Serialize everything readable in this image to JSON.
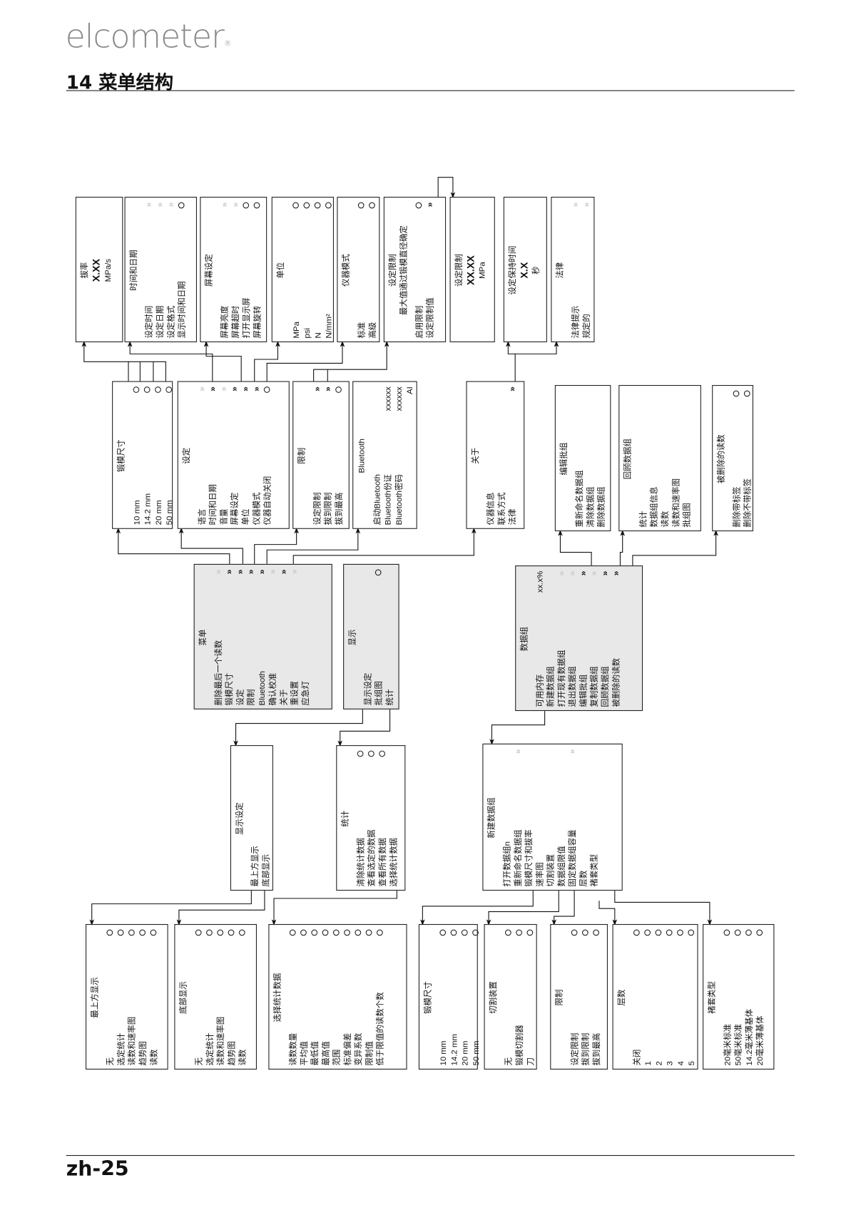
{
  "header": {
    "logo": "elcometer",
    "logo_mark": "®",
    "title": "14 菜单结构"
  },
  "footer": {
    "page": "zh-25"
  },
  "icons": {
    "arrow": "double-chevron-right-icon",
    "arrow-disabled": "double-chevron-right-disabled-icon",
    "radio": "radio-circle-icon"
  },
  "colors": {
    "submenu_bg": "#e8e8e8",
    "disabled_arrow": "#c8c8c8"
  },
  "boxes": [
    {
      "id": "pull-rate",
      "lines": [
        {
          "t": "拔率"
        },
        {
          "t": "X.XX",
          "big": true
        },
        {
          "t": "MPa/s"
        }
      ]
    },
    {
      "id": "time-date",
      "title": "时间和日期",
      "items": [
        {
          "label": "设定时间",
          "ind": "arrow-disabled"
        },
        {
          "label": "设定日期",
          "ind": "arrow-disabled"
        },
        {
          "label": "设定格式",
          "ind": "arrow-disabled"
        },
        {
          "label": "显示时间和日期",
          "ind": "radio"
        }
      ]
    },
    {
      "id": "screen-settings",
      "title": "屏幕设定",
      "items": [
        {
          "label": "屏幕亮度",
          "ind": "arrow-disabled"
        },
        {
          "label": "屏幕超时",
          "ind": "arrow-disabled"
        },
        {
          "label": "打开显示屏",
          "ind": "radio"
        },
        {
          "label": "屏幕旋转",
          "ind": "radio"
        }
      ]
    },
    {
      "id": "units",
      "title": "单位",
      "items": [
        {
          "label": "MPa",
          "ind": "radio"
        },
        {
          "label": "psi",
          "ind": "radio"
        },
        {
          "label": "N",
          "ind": "radio"
        },
        {
          "label": "N/mm²",
          "ind": "radio"
        }
      ]
    },
    {
      "id": "instrument-mode",
      "title": "仪器模式",
      "items": [
        {
          "label": "标准",
          "ind": "radio"
        },
        {
          "label": "高级",
          "ind": "radio"
        }
      ]
    },
    {
      "id": "set-limit",
      "title": "设定限制",
      "lines": [
        {
          "t": "最大值通过锻模直径确定"
        }
      ],
      "items": [
        {
          "label": "启用限制",
          "ind": "radio"
        },
        {
          "label": "设定限制值",
          "ind": "arrow"
        }
      ]
    },
    {
      "id": "limit-value",
      "lines": [
        {
          "t": "设定限制"
        },
        {
          "t": "XX.XX",
          "big": true
        },
        {
          "t": "MPa"
        }
      ]
    },
    {
      "id": "hold-time",
      "lines": [
        {
          "t": "设定保持时间"
        },
        {
          "t": "X.X",
          "big": true
        },
        {
          "t": "秒"
        }
      ]
    },
    {
      "id": "legal",
      "title": "法律",
      "items": [
        {
          "label": "法律提示",
          "ind": "arrow-disabled"
        },
        {
          "label": "规定的",
          "ind": "arrow-disabled"
        }
      ]
    },
    {
      "id": "dolly-size",
      "title": "锻模尺寸",
      "items": [
        {
          "label": "10 mm",
          "ind": "radio"
        },
        {
          "label": "14.2 mm",
          "ind": "radio"
        },
        {
          "label": "20 mm",
          "ind": "radio"
        },
        {
          "label": "50 mm",
          "ind": "radio"
        }
      ]
    },
    {
      "id": "setup",
      "title": "设定",
      "items": [
        {
          "label": "语言",
          "ind": "arrow-disabled"
        },
        {
          "label": "时间和日期",
          "ind": "arrow"
        },
        {
          "label": "音量",
          "ind": "arrow-disabled"
        },
        {
          "label": "屏幕设定",
          "ind": "arrow"
        },
        {
          "label": "单位",
          "ind": "arrow"
        },
        {
          "label": "仪器模式",
          "ind": "arrow"
        },
        {
          "label": "仪器自动关闭",
          "ind": "radio"
        }
      ]
    },
    {
      "id": "limits",
      "title": "限制",
      "items": [
        {
          "label": "设定限制",
          "ind": "arrow"
        },
        {
          "label": "拔到限制",
          "ind": "arrow"
        },
        {
          "label": "拔到最高",
          "ind": "radio"
        }
      ]
    },
    {
      "id": "bluetooth",
      "title": "Bluetooth",
      "items": [
        {
          "label": "启动Bluetooth"
        },
        {
          "label": "Bluetooth份证",
          "value": "xxxxxx"
        },
        {
          "label": "Bluetooth密码",
          "value": "xxxxxx"
        },
        {
          "label": "",
          "value": "AI"
        }
      ]
    },
    {
      "id": "about",
      "title": "关于",
      "items": [
        {
          "label": "仪器信息"
        },
        {
          "label": "联系方式"
        },
        {
          "label": "法律",
          "ind": "arrow"
        }
      ]
    },
    {
      "id": "edit-batch",
      "title": "编辑批组",
      "items": [
        {
          "label": "重新命名数据组"
        },
        {
          "label": "清除数据组"
        },
        {
          "label": "删除数据组"
        }
      ]
    },
    {
      "id": "review-batch",
      "title": "回顾数据组",
      "items": [
        {
          "label": "统计"
        },
        {
          "label": "数据组信息"
        },
        {
          "label": "读数"
        },
        {
          "label": "读数和速率图"
        },
        {
          "label": "批组图"
        }
      ]
    },
    {
      "id": "deleted-readings",
      "title": "被删除的读数",
      "items": [
        {
          "label": "删除带标签",
          "ind": "radio"
        },
        {
          "label": "删除不带标签",
          "ind": "radio"
        }
      ]
    },
    {
      "id": "menu",
      "gray": true,
      "title": "菜单",
      "items": [
        {
          "label": "删除最后一个读数",
          "ind": "arrow-disabled"
        },
        {
          "label": "锻模尺寸",
          "ind": "arrow"
        },
        {
          "label": "设定",
          "ind": "arrow"
        },
        {
          "label": "限制",
          "ind": "arrow"
        },
        {
          "label": "Bluetooth",
          "ind": "arrow"
        },
        {
          "label": "确认校准",
          "ind": "arrow-disabled"
        },
        {
          "label": "关于",
          "ind": "arrow"
        },
        {
          "label": "重设置",
          "ind": "arrow-disabled"
        },
        {
          "label": "应急灯"
        }
      ]
    },
    {
      "id": "display",
      "gray": true,
      "title": "显示",
      "items": [
        {
          "label": "显示设定"
        },
        {
          "label": "批组图",
          "ind": "radio"
        },
        {
          "label": "统计"
        }
      ]
    },
    {
      "id": "batch",
      "gray": true,
      "title": "数据组",
      "items": [
        {
          "label": "可用内存",
          "value": "xx.x%"
        },
        {
          "label": "新建数据组"
        },
        {
          "label": "打开现有数据组",
          "ind": "arrow-disabled"
        },
        {
          "label": "退出数据组",
          "ind": "arrow-disabled"
        },
        {
          "label": "编辑批组",
          "ind": "arrow"
        },
        {
          "label": "复制数据组",
          "ind": "arrow-disabled"
        },
        {
          "label": "回顾数据组",
          "ind": "arrow"
        },
        {
          "label": "被删除的读数",
          "ind": "arrow"
        }
      ]
    },
    {
      "id": "display-settings",
      "title": "显示设定",
      "items": [
        {
          "label": "最上方显示"
        },
        {
          "label": "底部显示"
        }
      ]
    },
    {
      "id": "statistics",
      "title": "统计",
      "items": [
        {
          "label": "清除统计数据",
          "ind": "radio"
        },
        {
          "label": "查看选定的数据",
          "ind": "radio"
        },
        {
          "label": "查看所有数据",
          "ind": "radio"
        },
        {
          "label": "选择统计数据"
        }
      ]
    },
    {
      "id": "new-batch",
      "title": "新建数据组",
      "items": [
        {
          "label": "打开数据组n"
        },
        {
          "label": "重新命名数据组",
          "ind": "arrow-disabled"
        },
        {
          "label": "锻模尺寸和拔率"
        },
        {
          "label": "速率图"
        },
        {
          "label": "切割装置"
        },
        {
          "label": "数据组限值"
        },
        {
          "label": "固定数据组容量",
          "ind": "arrow-disabled"
        },
        {
          "label": "层数"
        },
        {
          "label": "褚套类型"
        }
      ]
    },
    {
      "id": "top-display",
      "title": "最上方显示",
      "items": [
        {
          "label": "无",
          "ind": "radio"
        },
        {
          "label": "选定统计",
          "ind": "radio"
        },
        {
          "label": "读数和速率图",
          "ind": "radio"
        },
        {
          "label": "趋势图",
          "ind": "radio"
        },
        {
          "label": "读数",
          "ind": "radio"
        }
      ]
    },
    {
      "id": "bottom-display",
      "title": "底部显示",
      "items": [
        {
          "label": "无",
          "ind": "radio"
        },
        {
          "label": "选定统计",
          "ind": "radio"
        },
        {
          "label": "读数和速率图",
          "ind": "radio"
        },
        {
          "label": "趋势图",
          "ind": "radio"
        },
        {
          "label": "读数",
          "ind": "radio"
        }
      ]
    },
    {
      "id": "select-stats",
      "title": "选择统计数据",
      "items": [
        {
          "label": "读数数量",
          "ind": "radio"
        },
        {
          "label": "平均值",
          "ind": "radio"
        },
        {
          "label": "最低值",
          "ind": "radio"
        },
        {
          "label": "最高值",
          "ind": "radio"
        },
        {
          "label": "范围",
          "ind": "radio"
        },
        {
          "label": "标准偏差",
          "ind": "radio"
        },
        {
          "label": "变异系数",
          "ind": "radio"
        },
        {
          "label": "限制值",
          "ind": "radio"
        },
        {
          "label": "低于限值的读数个数",
          "ind": "radio"
        }
      ]
    },
    {
      "id": "batch-dolly-size",
      "title": "锻模尺寸",
      "items": [
        {
          "label": "10 mm",
          "ind": "radio"
        },
        {
          "label": "14.2 mm",
          "ind": "radio"
        },
        {
          "label": "20 mm",
          "ind": "radio"
        },
        {
          "label": "50 mm",
          "ind": "radio"
        }
      ]
    },
    {
      "id": "cutting-device",
      "title": "切割装置",
      "items": [
        {
          "label": "无",
          "ind": "radio"
        },
        {
          "label": "锻模切割器",
          "ind": "radio"
        },
        {
          "label": "刀",
          "ind": "radio"
        }
      ]
    },
    {
      "id": "batch-limits",
      "title": "限制",
      "items": [
        {
          "label": "设定限制",
          "ind": "radio"
        },
        {
          "label": "拔到限制",
          "ind": "radio"
        },
        {
          "label": "拔到最高",
          "ind": "radio"
        }
      ]
    },
    {
      "id": "layers",
      "title": "层数",
      "items": [
        {
          "label": "关闭",
          "ind": "radio"
        },
        {
          "label": "1",
          "ind": "radio"
        },
        {
          "label": "2",
          "ind": "radio"
        },
        {
          "label": "3",
          "ind": "radio"
        },
        {
          "label": "4",
          "ind": "radio"
        },
        {
          "label": "5",
          "ind": "radio"
        }
      ]
    },
    {
      "id": "sleeve-type",
      "title": "褚套类型",
      "items": [
        {
          "label": "20毫米标准",
          "ind": "radio"
        },
        {
          "label": "50毫米标准",
          "ind": "radio"
        },
        {
          "label": "14.2毫米薄基体",
          "ind": "radio"
        },
        {
          "label": "20毫米薄基体",
          "ind": "radio"
        }
      ]
    }
  ]
}
